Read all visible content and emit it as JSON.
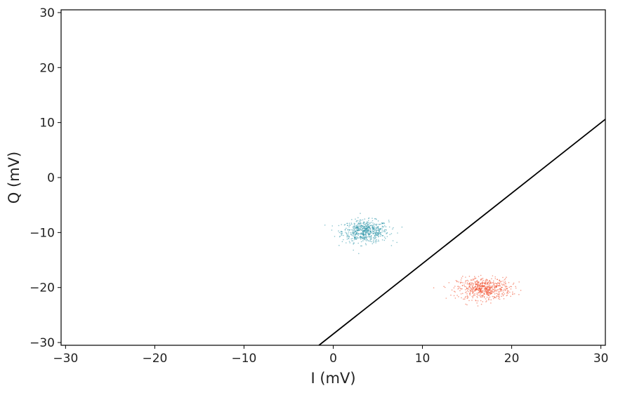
{
  "chart_data": {
    "type": "scatter",
    "xlabel": "I (mV)",
    "ylabel": "Q (mV)",
    "xlim": [
      -30.5,
      30.5
    ],
    "ylim": [
      -30.5,
      30.5
    ],
    "xticks": [
      -30,
      -20,
      -10,
      0,
      10,
      20,
      30
    ],
    "yticks": [
      -30,
      -20,
      -10,
      0,
      10,
      20,
      30
    ],
    "xtick_labels": [
      "−30",
      "−20",
      "−10",
      "0",
      "10",
      "20",
      "30"
    ],
    "ytick_labels": [
      "−30",
      "−20",
      "−10",
      "0",
      "10",
      "20",
      "30"
    ],
    "grid": false,
    "series": [
      {
        "type": "scatter-cluster",
        "color": "#2a93a8",
        "center": [
          3.6,
          -9.8
        ],
        "spread": [
          1.3,
          1.0
        ],
        "count": 600
      },
      {
        "type": "scatter-cluster",
        "color": "#f04a28",
        "center": [
          16.9,
          -20.2
        ],
        "spread": [
          1.5,
          1.0
        ],
        "count": 600
      }
    ],
    "lines": [
      {
        "type": "decision-boundary",
        "color": "#000000",
        "x": [
          -1.6,
          30.5
        ],
        "y": [
          -30.5,
          10.6
        ]
      }
    ]
  }
}
